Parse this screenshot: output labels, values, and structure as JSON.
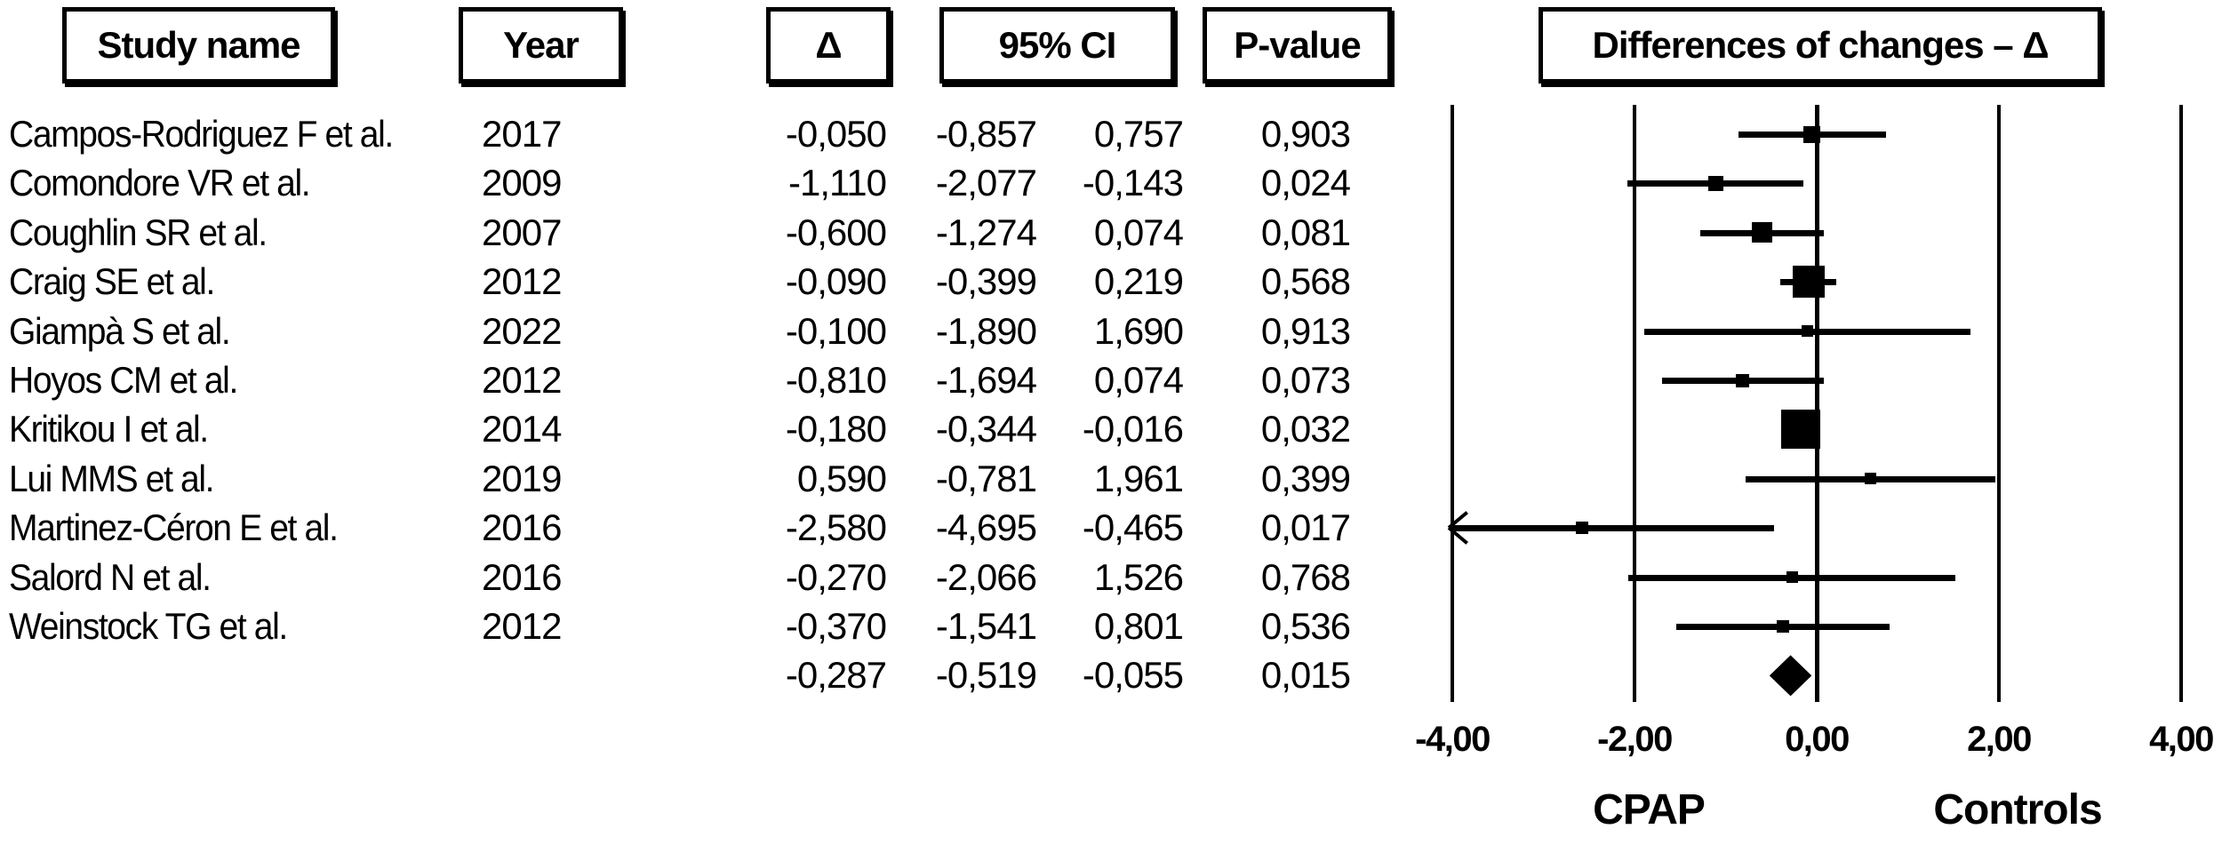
{
  "table": {
    "headers": {
      "study": "Study name",
      "year": "Year",
      "delta": "Δ",
      "ci": "95% CI",
      "pvalue": "P-value"
    },
    "rows": [
      {
        "study": "Campos-Rodriguez F et al.",
        "year": "2017",
        "delta": "-0,050",
        "ci_low": "-0,857",
        "ci_high": "0,757",
        "p": "0,903"
      },
      {
        "study": "Comondore VR et al.",
        "year": "2009",
        "delta": "-1,110",
        "ci_low": "-2,077",
        "ci_high": "-0,143",
        "p": "0,024"
      },
      {
        "study": "Coughlin SR et al.",
        "year": "2007",
        "delta": "-0,600",
        "ci_low": "-1,274",
        "ci_high": "0,074",
        "p": "0,081"
      },
      {
        "study": "Craig SE et al.",
        "year": "2012",
        "delta": "-0,090",
        "ci_low": "-0,399",
        "ci_high": "0,219",
        "p": "0,568"
      },
      {
        "study": "Giampà S et al.",
        "year": "2022",
        "delta": "-0,100",
        "ci_low": "-1,890",
        "ci_high": "1,690",
        "p": "0,913"
      },
      {
        "study": "Hoyos CM et al.",
        "year": "2012",
        "delta": "-0,810",
        "ci_low": "-1,694",
        "ci_high": "0,074",
        "p": "0,073"
      },
      {
        "study": "Kritikou I et al.",
        "year": "2014",
        "delta": "-0,180",
        "ci_low": "-0,344",
        "ci_high": "-0,016",
        "p": "0,032"
      },
      {
        "study": "Lui MMS et al.",
        "year": "2019",
        "delta": "0,590",
        "ci_low": "-0,781",
        "ci_high": "1,961",
        "p": "0,399"
      },
      {
        "study": "Martinez-Céron E et al.",
        "year": "2016",
        "delta": "-2,580",
        "ci_low": "-4,695",
        "ci_high": "-0,465",
        "p": "0,017"
      },
      {
        "study": "Salord N et al.",
        "year": "2016",
        "delta": "-0,270",
        "ci_low": "-2,066",
        "ci_high": "1,526",
        "p": "0,768"
      },
      {
        "study": "Weinstock TG et al.",
        "year": "2012",
        "delta": "-0,370",
        "ci_low": "-1,541",
        "ci_high": "0,801",
        "p": "0,536"
      }
    ],
    "pooled": {
      "delta": "-0,287",
      "ci_low": "-0,519",
      "ci_high": "-0,055",
      "p": "0,015"
    }
  },
  "plot": {
    "title": "Differences of changes – Δ",
    "axis_ticks": [
      "-4,00",
      "-2,00",
      "0,00",
      "2,00",
      "4,00"
    ],
    "left_label": "CPAP",
    "right_label": "Controls",
    "ink_color": "#000000",
    "background_color": "#ffffff"
  },
  "chart_data": {
    "type": "forest",
    "title": "Differences of changes – Δ",
    "effect_label": "Δ",
    "xlim": [
      -4,
      4
    ],
    "xticks": [
      -4,
      -2,
      0,
      2,
      4
    ],
    "group_label_left": "CPAP",
    "group_label_right": "Controls",
    "studies": [
      {
        "name": "Campos-Rodriguez F et al.",
        "year": 2017,
        "delta": -0.05,
        "ci": [
          -0.857,
          0.757
        ],
        "p": 0.903,
        "marker_size": 19
      },
      {
        "name": "Comondore VR et al.",
        "year": 2009,
        "delta": -1.11,
        "ci": [
          -2.077,
          -0.143
        ],
        "p": 0.024,
        "marker_size": 17
      },
      {
        "name": "Coughlin SR et al.",
        "year": 2007,
        "delta": -0.6,
        "ci": [
          -1.274,
          0.074
        ],
        "p": 0.081,
        "marker_size": 23
      },
      {
        "name": "Craig SE et al.",
        "year": 2012,
        "delta": -0.09,
        "ci": [
          -0.399,
          0.219
        ],
        "p": 0.568,
        "marker_size": 36
      },
      {
        "name": "Giampà S et al.",
        "year": 2022,
        "delta": -0.1,
        "ci": [
          -1.89,
          1.69
        ],
        "p": 0.913,
        "marker_size": 13
      },
      {
        "name": "Hoyos CM et al.",
        "year": 2012,
        "delta": -0.81,
        "ci": [
          -1.694,
          0.074
        ],
        "p": 0.073,
        "marker_size": 15
      },
      {
        "name": "Kritikou I et al.",
        "year": 2014,
        "delta": -0.18,
        "ci": [
          -0.344,
          -0.016
        ],
        "p": 0.032,
        "marker_size": 44
      },
      {
        "name": "Lui MMS et al.",
        "year": 2019,
        "delta": 0.59,
        "ci": [
          -0.781,
          1.961
        ],
        "p": 0.399,
        "marker_size": 13
      },
      {
        "name": "Martinez-Céron E et al.",
        "year": 2016,
        "delta": -2.58,
        "ci": [
          -4.695,
          -0.465
        ],
        "p": 0.017,
        "marker_size": 14,
        "ci_exceeds_left": true
      },
      {
        "name": "Salord N et al.",
        "year": 2016,
        "delta": -0.27,
        "ci": [
          -2.066,
          1.526
        ],
        "p": 0.768,
        "marker_size": 13
      },
      {
        "name": "Weinstock TG et al.",
        "year": 2012,
        "delta": -0.37,
        "ci": [
          -1.541,
          0.801
        ],
        "p": 0.536,
        "marker_size": 14
      }
    ],
    "pooled": {
      "delta": -0.287,
      "ci": [
        -0.519,
        -0.055
      ],
      "p": 0.015
    }
  }
}
